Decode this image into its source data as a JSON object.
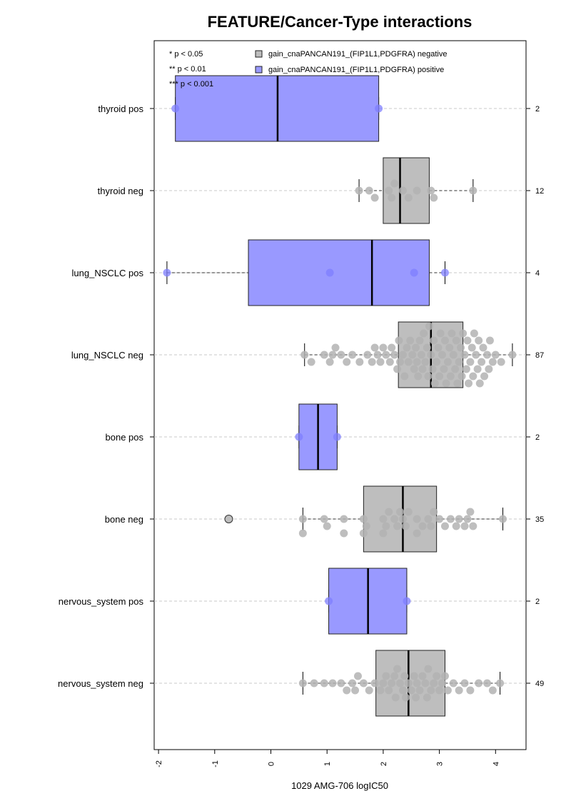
{
  "chart_data": {
    "type": "boxplot",
    "title": "FEATURE/Cancer-Type interactions",
    "xlabel": "1029 AMG-706 logIC50",
    "xlim": [
      -2.05,
      4.5
    ],
    "xticks": [
      "-2",
      "-1",
      "0",
      "1",
      "2",
      "3",
      "4"
    ],
    "grid": "horizontal dashed per group",
    "significance_legend": [
      "* p < 0.05",
      "** p < 0.01",
      "*** p < 0.001"
    ],
    "series": [
      {
        "name": "gain_cnaPANCAN191_(FIP1L1,PDGFRA) negative",
        "color": "#bebebe",
        "point_color": "#b3b3b3"
      },
      {
        "name": "gain_cnaPANCAN191_(FIP1L1,PDGFRA) positive",
        "color": "#9999ff",
        "point_color": "#7f7fff"
      }
    ],
    "groups": [
      {
        "label": "thyroid pos",
        "count": "2",
        "status": "positive",
        "whisker_low": -1.7,
        "q1": -1.7,
        "median": 0.12,
        "q3": 1.92,
        "whisker_high": 1.92,
        "outliers": [],
        "points": [
          -1.7,
          1.92
        ]
      },
      {
        "label": "thyroid neg",
        "count": "12",
        "status": "negative",
        "whisker_low": 1.57,
        "q1": 2.0,
        "median": 2.3,
        "q3": 2.82,
        "whisker_high": 3.6,
        "outliers": [],
        "points": [
          1.57,
          1.75,
          1.85,
          2.1,
          2.15,
          2.35,
          2.6,
          2.85,
          2.9,
          3.6,
          2.2,
          2.45
        ]
      },
      {
        "label": "lung_NSCLC pos",
        "count": "4",
        "status": "positive",
        "whisker_low": -1.85,
        "q1": -0.4,
        "median": 1.8,
        "q3": 2.82,
        "whisker_high": 3.1,
        "outliers": [],
        "points": [
          -1.85,
          1.05,
          2.55,
          3.1
        ]
      },
      {
        "label": "lung_NSCLC neg",
        "count": "87",
        "status": "negative",
        "whisker_low": 0.6,
        "q1": 2.27,
        "median": 2.85,
        "q3": 3.42,
        "whisker_high": 4.3,
        "outliers": [],
        "points": [
          0.6,
          0.72,
          1.05,
          1.15,
          1.25,
          1.35,
          1.45,
          1.58,
          1.72,
          1.85,
          1.95,
          2.05,
          2.12,
          2.2,
          2.28,
          2.35,
          2.42,
          2.48,
          2.55,
          2.6,
          2.65,
          2.7,
          2.75,
          2.8,
          2.85,
          2.9,
          2.95,
          3.0,
          3.05,
          3.1,
          3.15,
          3.2,
          3.25,
          3.3,
          3.35,
          3.4,
          3.45,
          3.5,
          3.55,
          3.6,
          3.65,
          3.7,
          3.75,
          3.8,
          3.85,
          3.9,
          3.95,
          4.0,
          4.1,
          4.3,
          0.95,
          1.1,
          1.8,
          1.9,
          2.0,
          2.15,
          2.25,
          2.3,
          2.38,
          2.45,
          2.52,
          2.58,
          2.62,
          2.68,
          2.72,
          2.78,
          2.82,
          2.88,
          2.92,
          2.98,
          3.02,
          3.08,
          3.12,
          3.18,
          3.22,
          3.28,
          3.32,
          3.38,
          3.42,
          3.48,
          3.52,
          3.58,
          3.62,
          3.68,
          3.72,
          3.78,
          3.88
        ]
      },
      {
        "label": "bone pos",
        "count": "2",
        "status": "positive",
        "whisker_low": 0.5,
        "q1": 0.5,
        "median": 0.84,
        "q3": 1.18,
        "whisker_high": 1.18,
        "outliers": [],
        "points": [
          0.5,
          1.18
        ]
      },
      {
        "label": "bone neg",
        "count": "35",
        "status": "negative",
        "whisker_low": 0.57,
        "q1": 1.65,
        "median": 2.35,
        "q3": 2.95,
        "whisker_high": 4.13,
        "outliers": [
          -0.75
        ],
        "points": [
          0.57,
          0.57,
          0.95,
          1.0,
          1.3,
          1.3,
          1.65,
          1.65,
          1.7,
          2.0,
          2.0,
          2.05,
          2.1,
          2.25,
          2.3,
          2.35,
          2.4,
          2.45,
          2.6,
          2.6,
          2.8,
          2.85,
          2.9,
          3.0,
          3.1,
          3.2,
          3.3,
          3.35,
          3.45,
          3.5,
          3.55,
          3.6,
          4.13,
          2.2,
          2.7
        ]
      },
      {
        "label": "nervous_system pos",
        "count": "2",
        "status": "positive",
        "whisker_low": 1.03,
        "q1": 1.03,
        "median": 1.73,
        "q3": 2.42,
        "whisker_high": 2.42,
        "outliers": [],
        "points": [
          1.03,
          2.42
        ]
      },
      {
        "label": "nervous_system neg",
        "count": "49",
        "status": "negative",
        "whisker_low": 0.57,
        "q1": 1.87,
        "median": 2.45,
        "q3": 3.1,
        "whisker_high": 4.08,
        "outliers": [],
        "points": [
          0.57,
          0.77,
          0.95,
          1.1,
          1.25,
          1.35,
          1.45,
          1.5,
          1.55,
          1.65,
          1.75,
          1.85,
          1.95,
          2.0,
          2.05,
          2.1,
          2.15,
          2.2,
          2.25,
          2.3,
          2.35,
          2.4,
          2.45,
          2.5,
          2.55,
          2.6,
          2.65,
          2.7,
          2.75,
          2.8,
          2.85,
          2.9,
          2.95,
          3.0,
          3.05,
          3.1,
          3.15,
          3.25,
          3.35,
          3.45,
          3.55,
          3.7,
          3.85,
          3.95,
          4.08,
          2.22,
          2.38,
          2.58,
          2.78
        ]
      }
    ]
  }
}
